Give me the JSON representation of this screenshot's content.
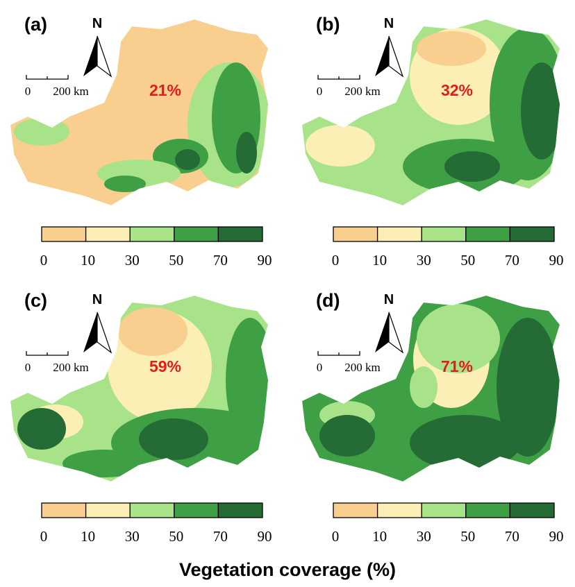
{
  "panels": [
    {
      "label": "(a)",
      "coverage": "21%"
    },
    {
      "label": "(b)",
      "coverage": "32%"
    },
    {
      "label": "(c)",
      "coverage": "59%"
    },
    {
      "label": "(d)",
      "coverage": "71%"
    }
  ],
  "north": "N",
  "scale_bar": {
    "start": "0",
    "end": "200 km"
  },
  "legend": {
    "colors": [
      "#f9cf8f",
      "#fbefb5",
      "#a8e38a",
      "#3f9f45",
      "#246b35"
    ],
    "ticks": [
      0,
      10,
      30,
      50,
      70,
      90
    ]
  },
  "title": "Vegetation coverage (%)"
}
